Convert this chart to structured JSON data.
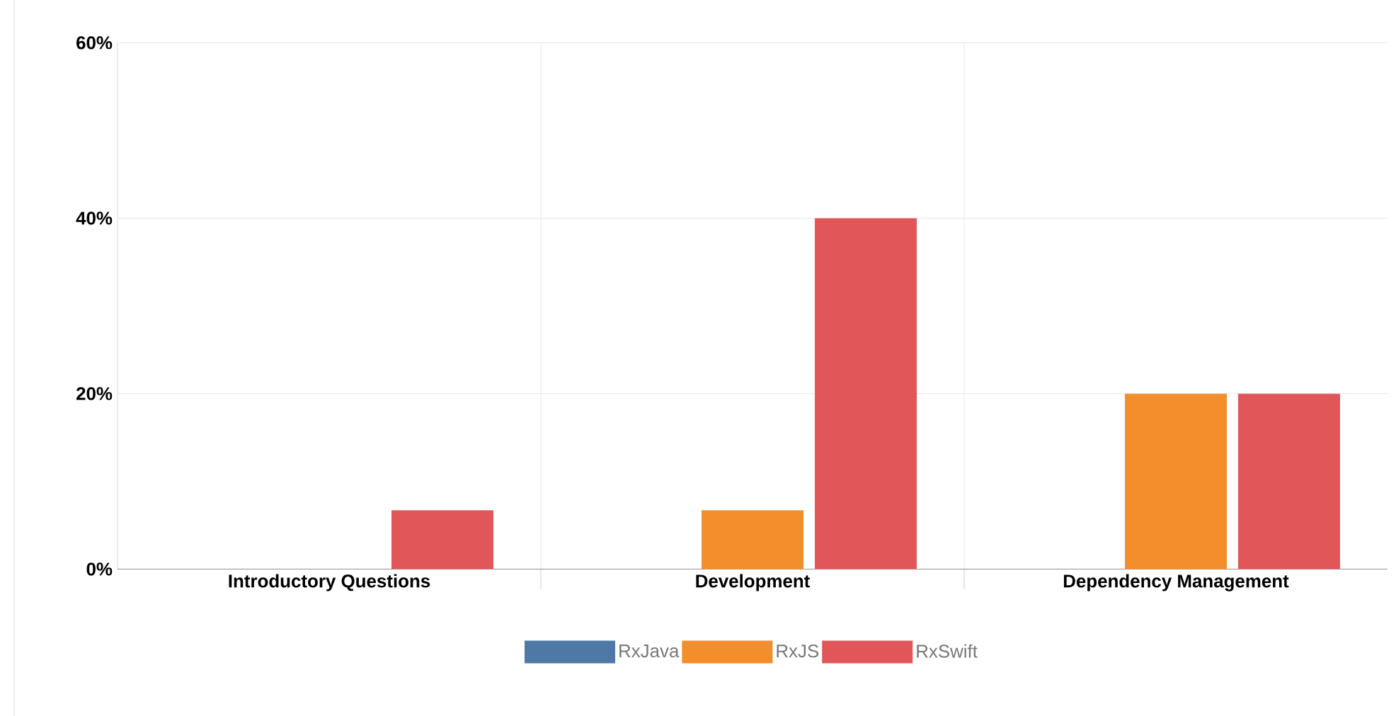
{
  "chart_data": {
    "type": "bar",
    "categories": [
      "Introductory Questions",
      "Development",
      "Dependency Management"
    ],
    "series": [
      {
        "name": "RxJava",
        "color": "#4e79a7",
        "values": [
          0,
          0,
          0
        ]
      },
      {
        "name": "RxJS",
        "color": "#f28e2b",
        "values": [
          0,
          6.7,
          20
        ]
      },
      {
        "name": "RxSwift",
        "color": "#e15759",
        "values": [
          6.7,
          40,
          20
        ]
      }
    ],
    "ylim": [
      0,
      60
    ],
    "yticks": [
      {
        "value": 0,
        "label": "0%"
      },
      {
        "value": 20,
        "label": "20%"
      },
      {
        "value": 40,
        "label": "40%"
      },
      {
        "value": 60,
        "label": "60%"
      }
    ],
    "grid": true,
    "legend": "bottom"
  }
}
